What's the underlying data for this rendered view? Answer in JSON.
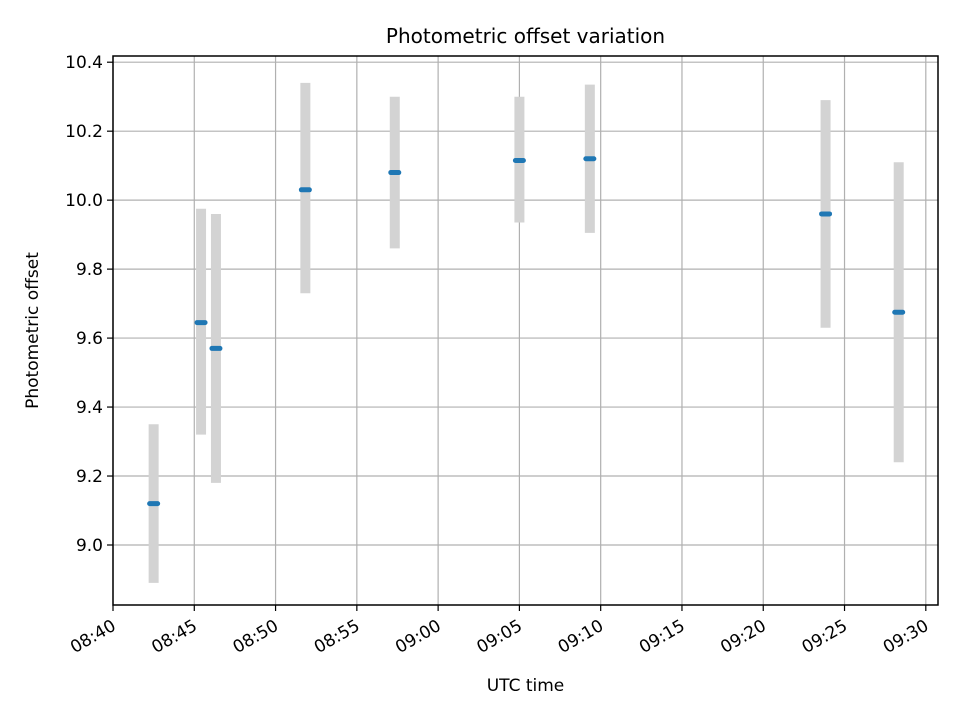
{
  "chart_data": {
    "type": "scatter",
    "title": "Photometric offset variation",
    "xlabel": "UTC time",
    "ylabel": "Photometric offset",
    "x_tick_labels": [
      "08:40",
      "08:45",
      "08:50",
      "08:55",
      "09:00",
      "09:05",
      "09:10",
      "09:15",
      "09:20",
      "09:25",
      "09:30"
    ],
    "y_tick_labels": [
      "9.0",
      "9.2",
      "9.4",
      "9.6",
      "9.8",
      "10.0",
      "10.2",
      "10.4"
    ],
    "x_range": [
      "08:40:00",
      "09:30:45"
    ],
    "ylim": [
      8.826,
      10.418
    ],
    "grid": true,
    "points": [
      {
        "time": "08:42:30",
        "y": 9.12,
        "yerr_low": 8.89,
        "yerr_high": 9.35
      },
      {
        "time": "08:45:25",
        "y": 9.645,
        "yerr_low": 9.32,
        "yerr_high": 9.975
      },
      {
        "time": "08:46:20",
        "y": 9.57,
        "yerr_low": 9.18,
        "yerr_high": 9.96
      },
      {
        "time": "08:51:50",
        "y": 10.03,
        "yerr_low": 9.73,
        "yerr_high": 10.34
      },
      {
        "time": "08:57:20",
        "y": 10.08,
        "yerr_low": 9.86,
        "yerr_high": 10.3
      },
      {
        "time": "09:05:00",
        "y": 10.115,
        "yerr_low": 9.935,
        "yerr_high": 10.3
      },
      {
        "time": "09:09:20",
        "y": 10.12,
        "yerr_low": 9.905,
        "yerr_high": 10.335
      },
      {
        "time": "09:23:50",
        "y": 9.96,
        "yerr_low": 9.63,
        "yerr_high": 10.29
      },
      {
        "time": "09:28:20",
        "y": 9.675,
        "yerr_low": 9.24,
        "yerr_high": 10.11
      }
    ],
    "colors": {
      "point": "#1f77b4",
      "errorbar": "#d3d3d3",
      "grid": "#b0b0b0",
      "axis": "#000000"
    }
  }
}
